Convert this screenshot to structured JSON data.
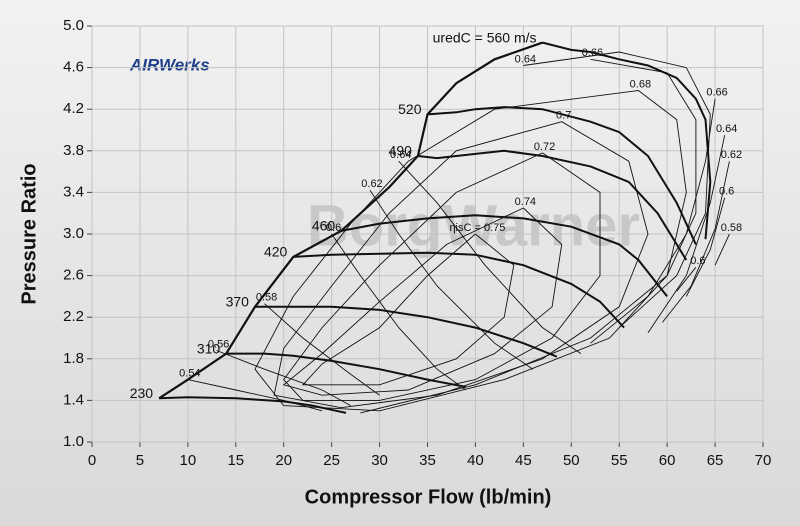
{
  "chart_data": {
    "type": "line",
    "logo": "AIRWerks",
    "watermark": "BorgWarner",
    "x_label": "Compressor Flow (lb/min)",
    "y_label": "Pressure Ratio",
    "xlim": [
      0,
      70
    ],
    "xticks": [
      0,
      5,
      10,
      15,
      20,
      25,
      30,
      35,
      40,
      45,
      50,
      55,
      60,
      65,
      70
    ],
    "ylim": [
      1.0,
      5.0
    ],
    "yticks": [
      {
        "value": 1.0,
        "label": "1.0"
      },
      1.4,
      1.8,
      2.2,
      2.6,
      {
        "value": 3.0,
        "label": "3.0"
      },
      3.4,
      3.8,
      4.2,
      4.6,
      {
        "value": 5.0,
        "label": "5.0"
      }
    ],
    "grid": true,
    "color": "#111111",
    "series": [
      {
        "name": "230",
        "x": [
          7,
          10,
          15,
          20,
          23,
          25,
          26.5
        ],
        "y": [
          1.42,
          1.43,
          1.42,
          1.39,
          1.35,
          1.31,
          1.28
        ]
      },
      {
        "name": "310",
        "x": [
          14,
          18,
          21,
          25,
          30,
          35,
          39
        ],
        "y": [
          1.85,
          1.85,
          1.83,
          1.78,
          1.7,
          1.6,
          1.53
        ]
      },
      {
        "name": "370",
        "x": [
          17,
          21,
          25,
          30,
          35,
          40,
          45,
          48.5
        ],
        "y": [
          2.3,
          2.3,
          2.3,
          2.27,
          2.2,
          2.1,
          1.95,
          1.82
        ]
      },
      {
        "name": "420",
        "x": [
          21,
          25,
          30,
          35,
          40,
          45,
          50,
          53,
          55.5
        ],
        "y": [
          2.78,
          2.8,
          2.81,
          2.82,
          2.8,
          2.7,
          2.52,
          2.35,
          2.1
        ]
      },
      {
        "name": "460",
        "x": [
          26,
          30,
          35,
          40,
          45,
          50,
          55,
          57,
          60
        ],
        "y": [
          3.03,
          3.1,
          3.15,
          3.18,
          3.15,
          3.07,
          2.9,
          2.75,
          2.4
        ]
      },
      {
        "name": "490",
        "x": [
          34,
          36,
          40,
          43,
          47,
          52,
          56,
          59,
          62
        ],
        "y": [
          3.75,
          3.73,
          3.77,
          3.8,
          3.75,
          3.65,
          3.5,
          3.2,
          2.75
        ]
      },
      {
        "name": "520",
        "x": [
          35,
          38,
          40,
          43,
          47,
          52,
          55,
          58,
          61,
          63
        ],
        "y": [
          4.15,
          4.17,
          4.2,
          4.22,
          4.2,
          4.08,
          3.98,
          3.75,
          3.3,
          2.9
        ]
      },
      {
        "name": "uredC = 560 m/s",
        "x": [
          47,
          50,
          52,
          55,
          58,
          61,
          63,
          64,
          64.5,
          64
        ],
        "y": [
          4.84,
          4.77,
          4.75,
          4.68,
          4.62,
          4.5,
          4.3,
          4.1,
          3.5,
          2.95
        ]
      }
    ],
    "surge_line": {
      "x": [
        7,
        10,
        14,
        17,
        21,
        26,
        31,
        34,
        35,
        38,
        42,
        47
      ],
      "y": [
        1.42,
        1.6,
        1.85,
        2.3,
        2.78,
        3.03,
        3.45,
        3.75,
        4.15,
        4.45,
        4.68,
        4.84
      ]
    },
    "contours": [
      {
        "label": "ηisC = 0.75",
        "x": [
          40,
          44,
          43,
          38,
          30,
          22,
          24,
          30,
          35,
          40
        ],
        "y": [
          3.0,
          2.7,
          2.2,
          1.8,
          1.55,
          1.55,
          1.75,
          2.1,
          2.6,
          3.0
        ]
      },
      {
        "label": "0.74",
        "x": [
          45,
          49,
          48,
          42,
          33,
          24,
          20,
          24,
          30,
          37,
          45
        ],
        "y": [
          3.25,
          2.9,
          2.3,
          1.85,
          1.5,
          1.45,
          1.55,
          1.85,
          2.35,
          2.9,
          3.25
        ]
      },
      {
        "label": "0.72",
        "x": [
          47,
          53,
          53,
          48,
          40,
          30,
          22,
          20,
          24,
          30,
          38,
          47
        ],
        "y": [
          3.78,
          3.4,
          2.6,
          2.0,
          1.6,
          1.4,
          1.4,
          1.6,
          2.1,
          2.7,
          3.4,
          3.78
        ]
      },
      {
        "label": "0.7",
        "x": [
          49,
          56,
          58,
          55,
          47,
          36,
          26,
          19,
          20,
          25,
          31,
          38,
          49
        ],
        "y": [
          4.08,
          3.7,
          3.0,
          2.3,
          1.8,
          1.45,
          1.33,
          1.45,
          1.9,
          2.5,
          3.2,
          3.8,
          4.08
        ]
      },
      {
        "label": "0.68",
        "x": [
          57,
          61,
          62,
          60,
          54,
          43,
          30,
          20,
          17,
          21,
          27,
          33,
          42,
          57
        ],
        "y": [
          4.38,
          4.1,
          3.4,
          2.6,
          2.0,
          1.6,
          1.3,
          1.35,
          1.7,
          2.4,
          3.1,
          3.7,
          4.2,
          4.38
        ]
      },
      {
        "label": "0.66",
        "x": [
          52,
          60,
          63,
          63,
          60,
          52,
          40,
          28
        ],
        "y": [
          4.68,
          4.55,
          4.1,
          3.2,
          2.6,
          2.0,
          1.55,
          1.28
        ]
      },
      {
        "label": "0.64",
        "x": [
          45,
          55,
          62,
          64.5,
          64,
          61,
          55
        ],
        "y": [
          4.62,
          4.75,
          4.6,
          4.15,
          3.2,
          2.6,
          2.1
        ]
      },
      {
        "label": "0.54",
        "x": [
          10,
          15,
          20,
          24
        ],
        "y": [
          1.6,
          1.5,
          1.4,
          1.3
        ]
      },
      {
        "label": "0.56",
        "x": [
          13,
          18,
          24,
          27
        ],
        "y": [
          1.88,
          1.7,
          1.5,
          1.35
        ]
      },
      {
        "label": "0.58",
        "x": [
          18,
          22,
          27,
          30
        ],
        "y": [
          2.33,
          2.0,
          1.65,
          1.45
        ]
      },
      {
        "label": "0.6",
        "x": [
          25,
          28,
          32,
          36,
          39
        ],
        "y": [
          3.0,
          2.6,
          2.1,
          1.7,
          1.5
        ]
      },
      {
        "label": "0.62",
        "x": [
          29,
          32,
          36,
          42,
          46
        ],
        "y": [
          3.42,
          3.0,
          2.5,
          1.95,
          1.7
        ]
      },
      {
        "label": "0.64",
        "x": [
          32,
          36,
          41,
          47,
          51
        ],
        "y": [
          3.7,
          3.3,
          2.7,
          2.1,
          1.85
        ]
      },
      {
        "label": "0.66",
        "x": [
          65,
          64,
          62,
          58,
          52
        ],
        "y": [
          4.3,
          3.7,
          3.0,
          2.4,
          1.95
        ]
      },
      {
        "label": "0.64",
        "x": [
          66,
          64.5,
          62,
          58
        ],
        "y": [
          3.95,
          3.3,
          2.6,
          2.05
        ]
      },
      {
        "label": "0.62",
        "x": [
          66.5,
          65,
          62.5,
          59.5
        ],
        "y": [
          3.7,
          3.05,
          2.5,
          2.15
        ]
      },
      {
        "label": "0.6",
        "x": [
          66,
          64.5,
          62
        ],
        "y": [
          3.35,
          2.85,
          2.4
        ]
      },
      {
        "label": "0.58",
        "x": [
          66.5,
          65
        ],
        "y": [
          3.0,
          2.7
        ]
      },
      {
        "label": "0.6",
        "x": [
          63,
          61
        ],
        "y": [
          2.68,
          2.45
        ]
      }
    ]
  }
}
